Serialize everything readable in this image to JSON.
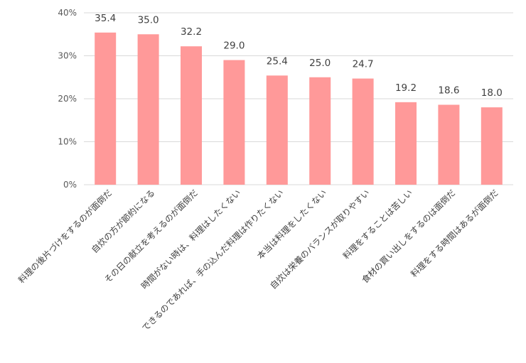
{
  "colors": {
    "bar": "#ff9999",
    "grid": "#d9d9d9",
    "text": "#404040",
    "axis_text": "#595959"
  },
  "chart_data": {
    "type": "bar",
    "title": "",
    "xlabel": "",
    "ylabel": "",
    "ylim": [
      0,
      40
    ],
    "y_unit": "%",
    "y_ticks": [
      "0%",
      "10%",
      "20%",
      "30%",
      "40%"
    ],
    "grid": true,
    "legend": "none",
    "categories": [
      "料理の後片づけをするのが面倒だ",
      "自炊の方が節約になる",
      "その日の献立を考えるのが面倒だ",
      "時間がない時は、料理はしたくない",
      "できるのであれば、手の込んだ料理は作りたくない",
      "本当は料理をしたくない",
      "自炊は栄養のバランスが取りやすい",
      "料理をすることは苦しい",
      "食材の買い出しをするのは面倒だ",
      "料理をする時間はあるが面倒だ"
    ],
    "values": [
      35.4,
      35.0,
      32.2,
      29.0,
      25.4,
      25.0,
      24.7,
      19.2,
      18.6,
      18.0
    ],
    "value_labels": [
      "35.4",
      "35.0",
      "32.2",
      "29.0",
      "25.4",
      "25.0",
      "24.7",
      "19.2",
      "18.6",
      "18.0"
    ]
  }
}
